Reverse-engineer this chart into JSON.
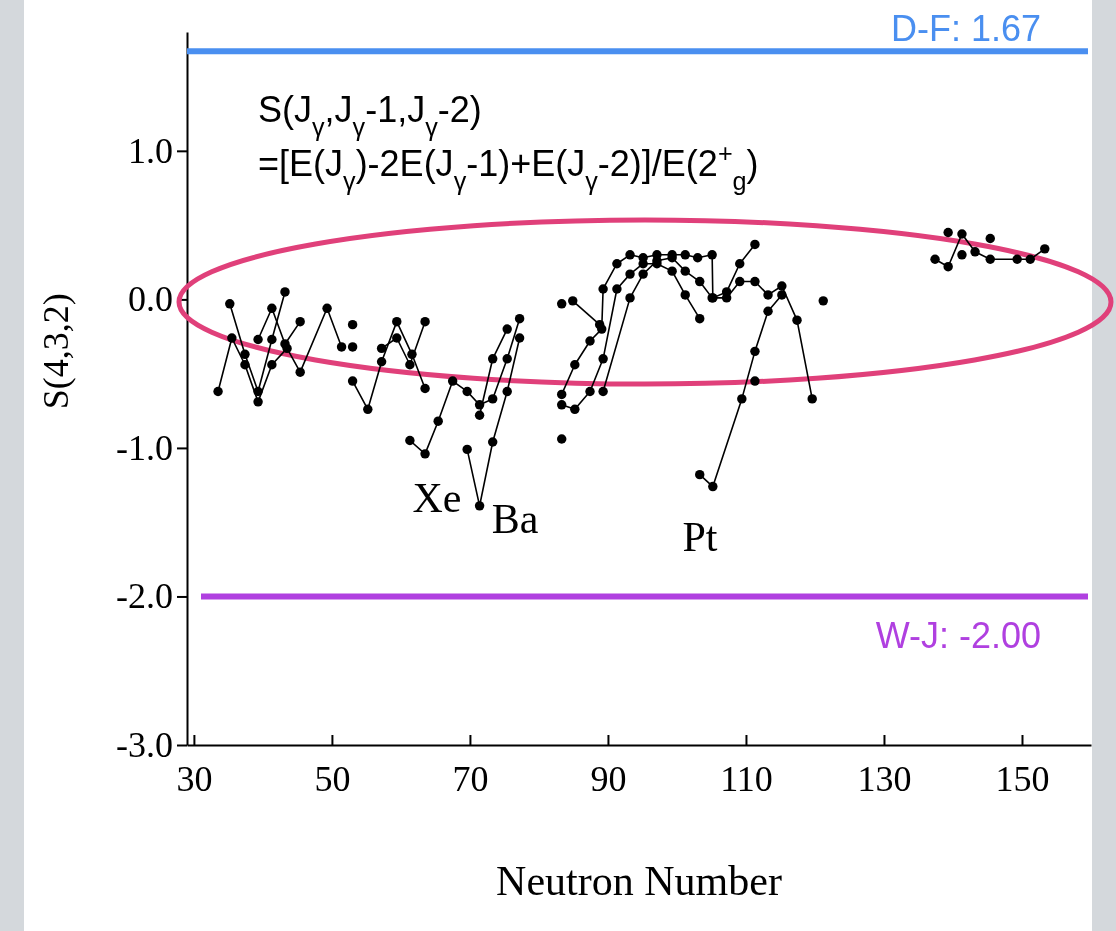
{
  "chart_data": {
    "type": "line",
    "xlabel": "Neutron Number",
    "ylabel": "S(4,3,2)",
    "xlim": [
      29,
      160
    ],
    "ylim": [
      -3.0,
      1.8
    ],
    "xticks": [
      30,
      50,
      70,
      90,
      110,
      130,
      150
    ],
    "yticks": [
      {
        "value": -3,
        "label": "-3.0"
      },
      {
        "value": -2,
        "label": "-2.0"
      },
      {
        "value": -1,
        "label": "-1.0"
      },
      {
        "value": 0,
        "label": "0.0"
      },
      {
        "value": 1,
        "label": "1.0"
      }
    ],
    "grid": false,
    "marker": "circle",
    "line_style": "solid",
    "series": [
      {
        "color": "#000000",
        "x": [
          33.5,
          35.5,
          37.4,
          39.3,
          41.3,
          43.5,
          45.4,
          49.3,
          51.4
        ],
        "values": [
          -0.62,
          -0.26,
          -0.44,
          -0.69,
          -0.44,
          -0.33,
          -0.49,
          -0.06,
          -0.32
        ]
      },
      {
        "color": "#000000",
        "x": [
          35.2,
          37.4,
          39.3,
          41.3,
          43.2
        ],
        "values": [
          -0.03,
          -0.37,
          -0.62,
          -0.27,
          0.05
        ]
      },
      {
        "color": "#000000",
        "x": [
          39.3,
          41.3,
          43.2,
          45.4
        ],
        "values": [
          -0.27,
          -0.06,
          -0.3,
          -0.15
        ]
      },
      {
        "color": "#000000",
        "x": [
          53,
          55.2,
          57.2,
          59.4,
          61.6,
          63.5
        ],
        "values": [
          -0.55,
          -0.74,
          -0.42,
          -0.15,
          -0.37,
          -0.6
        ]
      },
      {
        "color": "#000000",
        "x": [
          57.2,
          59.4,
          61.3,
          63.5
        ],
        "values": [
          -0.33,
          -0.26,
          -0.44,
          -0.15
        ]
      },
      {
        "color": "#000000",
        "x": [
          61.3,
          63.5,
          65.4,
          67.5,
          69.6,
          71.4,
          73.3,
          75.4,
          77.2
        ],
        "values": [
          -0.95,
          -1.04,
          -0.82,
          -0.55,
          -0.62,
          -0.71,
          -0.67,
          -0.4,
          -0.13
        ]
      },
      {
        "color": "#000000",
        "x": [
          69.6,
          71.4,
          73.3,
          75.4,
          77.2
        ],
        "values": [
          -1.01,
          -1.39,
          -0.96,
          -0.62,
          -0.26
        ]
      },
      {
        "color": "#000000",
        "x": [
          71.4,
          73.3,
          75.4
        ],
        "values": [
          -0.78,
          -0.4,
          -0.2
        ]
      },
      {
        "color": "#000000",
        "x": [
          83.3,
          85.2,
          87.4,
          89.1,
          89.3,
          91.3,
          93.2,
          95.1,
          97.1,
          99.3,
          101.2,
          103.0,
          105.1,
          105.2,
          107.2,
          109.1,
          111.3
        ],
        "values": [
          -0.64,
          -0.44,
          -0.28,
          -0.2,
          0.07,
          0.24,
          0.3,
          0.28,
          0.3,
          0.3,
          0.3,
          0.28,
          0.3,
          0.01,
          0.05,
          0.24,
          0.37
        ]
      },
      {
        "color": "#000000",
        "x": [
          83.3,
          85.2,
          87.4,
          89.3,
          91.3,
          93.2,
          95.1,
          97.1,
          99.3,
          101.2,
          103.3
        ],
        "values": [
          -0.71,
          -0.74,
          -0.62,
          -0.4,
          0.07,
          0.17,
          0.24,
          0.24,
          0.19,
          0.03,
          -0.13
        ]
      },
      {
        "color": "#000000",
        "x": [
          89.3,
          93.2,
          95.1,
          97.1,
          99.3,
          101.2,
          103.3,
          105.1,
          107.2,
          109.1,
          111.3,
          113.2,
          115.2,
          117.4,
          119.6
        ],
        "values": [
          -0.62,
          0.01,
          0.17,
          0.26,
          0.28,
          0.19,
          0.12,
          0.01,
          0.01,
          0.12,
          0.12,
          0.03,
          0.09,
          -0.14,
          -0.67
        ]
      },
      {
        "color": "#000000",
        "x": [
          84.9,
          88.8
        ],
        "values": [
          -0.01,
          -0.17
        ]
      },
      {
        "color": "#000000",
        "x": [
          103.3,
          105.2,
          109.4,
          111.3,
          113.2,
          115.2
        ],
        "values": [
          -1.18,
          -1.26,
          -0.67,
          -0.35,
          -0.08,
          0.03
        ]
      },
      {
        "color": "#000000",
        "x": [
          137.4,
          139.3,
          141.3,
          143.2,
          145.4,
          149.3,
          151.2,
          153.3
        ],
        "values": [
          0.27,
          0.22,
          0.44,
          0.32,
          0.27,
          0.27,
          0.27,
          0.34
        ]
      },
      {
        "type": "scatter",
        "color": "#000000",
        "x": [
          53,
          53,
          83.3,
          83.3,
          111.3,
          121.2,
          139.3,
          141.3,
          145.4
        ],
        "values": [
          -0.17,
          -0.32,
          -0.03,
          -0.94,
          -0.55,
          -0.01,
          0.45,
          0.3,
          0.41
        ]
      }
    ],
    "ref_lines": [
      {
        "axis": "y",
        "value": 1.67,
        "label": "D-F: 1.67",
        "color": "#4a8ff0"
      },
      {
        "axis": "y",
        "value": -2.0,
        "label": "W-J: -2.00",
        "color": "#b040e0"
      }
    ],
    "annotations": [
      "S(J$_{γ}$,J$_{γ}$-1,J$_{γ}$-2)",
      "=[E(J$_{γ}$)-2E(J$_{γ}$-1)+E(J$_{γ}$-2)]/E(2$^{+}$$_{g}$)",
      "Xe",
      "Ba",
      "Pt"
    ]
  }
}
